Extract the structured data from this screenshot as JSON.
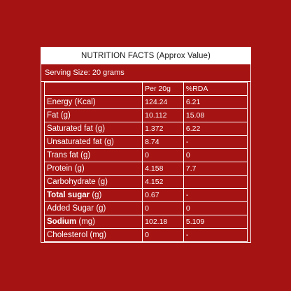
{
  "title": "NUTRITION FACTS (Approx Value)",
  "serving_size": "Serving Size: 20 grams",
  "columns": [
    "",
    "Per 20g",
    "%RDA"
  ],
  "rows": [
    {
      "bold": "",
      "label": "Energy (Kcal)",
      "per20g": "124.24",
      "rda": "6.21"
    },
    {
      "bold": "",
      "label": "Fat (g)",
      "per20g": "10.112",
      "rda": "15.08"
    },
    {
      "bold": "",
      "label": "Saturated fat (g)",
      "per20g": "1.372",
      "rda": "6.22"
    },
    {
      "bold": "",
      "label": "Unsaturated fat (g)",
      "per20g": "8.74",
      "rda": "-"
    },
    {
      "bold": "",
      "label": "Trans fat (g)",
      "per20g": "0",
      "rda": "0"
    },
    {
      "bold": "",
      "label": "Protein (g)",
      "per20g": "4.158",
      "rda": "7.7"
    },
    {
      "bold": "",
      "label": "Carbohydrate (g)",
      "per20g": "4.152",
      "rda": ""
    },
    {
      "bold": "Total sugar",
      "label": " (g)",
      "per20g": "0.67",
      "rda": "-"
    },
    {
      "bold": "",
      "label": "Added Sugar (g)",
      "per20g": "0",
      "rda": "0"
    },
    {
      "bold": "Sodium",
      "label": " (mg)",
      "per20g": "102.18",
      "rda": "5.109"
    },
    {
      "bold": "",
      "label": "Cholesterol (mg)",
      "per20g": "0",
      "rda": "-"
    }
  ],
  "colors": {
    "background": "#a61313",
    "foreground": "#ffffff",
    "title_text": "#1a1a1a"
  }
}
